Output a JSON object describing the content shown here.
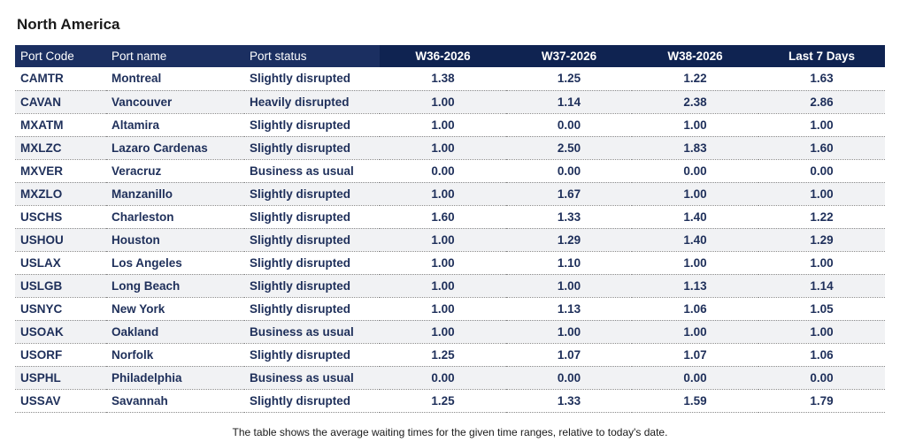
{
  "region_title": "North America",
  "columns": [
    "Port Code",
    "Port name",
    "Port status",
    "W36-2026",
    "W37-2026",
    "W38-2026",
    "Last 7 Days"
  ],
  "rows": [
    {
      "code": "CAMTR",
      "name": "Montreal",
      "status": "Slightly disrupted",
      "w36": "1.38",
      "w37": "1.25",
      "w38": "1.22",
      "last7": "1.63"
    },
    {
      "code": "CAVAN",
      "name": "Vancouver",
      "status": "Heavily disrupted",
      "w36": "1.00",
      "w37": "1.14",
      "w38": "2.38",
      "last7": "2.86"
    },
    {
      "code": "MXATM",
      "name": "Altamira",
      "status": "Slightly disrupted",
      "w36": "1.00",
      "w37": "0.00",
      "w38": "1.00",
      "last7": "1.00"
    },
    {
      "code": "MXLZC",
      "name": "Lazaro Cardenas",
      "status": "Slightly disrupted",
      "w36": "1.00",
      "w37": "2.50",
      "w38": "1.83",
      "last7": "1.60"
    },
    {
      "code": "MXVER",
      "name": "Veracruz",
      "status": "Business as usual",
      "w36": "0.00",
      "w37": "0.00",
      "w38": "0.00",
      "last7": "0.00"
    },
    {
      "code": "MXZLO",
      "name": "Manzanillo",
      "status": "Slightly disrupted",
      "w36": "1.00",
      "w37": "1.67",
      "w38": "1.00",
      "last7": "1.00"
    },
    {
      "code": "USCHS",
      "name": "Charleston",
      "status": "Slightly disrupted",
      "w36": "1.60",
      "w37": "1.33",
      "w38": "1.40",
      "last7": "1.22"
    },
    {
      "code": "USHOU",
      "name": "Houston",
      "status": "Slightly disrupted",
      "w36": "1.00",
      "w37": "1.29",
      "w38": "1.40",
      "last7": "1.29"
    },
    {
      "code": "USLAX",
      "name": "Los Angeles",
      "status": "Slightly disrupted",
      "w36": "1.00",
      "w37": "1.10",
      "w38": "1.00",
      "last7": "1.00"
    },
    {
      "code": "USLGB",
      "name": "Long Beach",
      "status": "Slightly disrupted",
      "w36": "1.00",
      "w37": "1.00",
      "w38": "1.13",
      "last7": "1.14"
    },
    {
      "code": "USNYC",
      "name": "New York",
      "status": "Slightly disrupted",
      "w36": "1.00",
      "w37": "1.13",
      "w38": "1.06",
      "last7": "1.05"
    },
    {
      "code": "USOAK",
      "name": "Oakland",
      "status": "Business as usual",
      "w36": "1.00",
      "w37": "1.00",
      "w38": "1.00",
      "last7": "1.00"
    },
    {
      "code": "USORF",
      "name": "Norfolk",
      "status": "Slightly disrupted",
      "w36": "1.25",
      "w37": "1.07",
      "w38": "1.07",
      "last7": "1.06"
    },
    {
      "code": "USPHL",
      "name": "Philadelphia",
      "status": "Business as usual",
      "w36": "0.00",
      "w37": "0.00",
      "w38": "0.00",
      "last7": "0.00"
    },
    {
      "code": "USSAV",
      "name": "Savannah",
      "status": "Slightly disrupted",
      "w36": "1.25",
      "w37": "1.33",
      "w38": "1.59",
      "last7": "1.79"
    }
  ],
  "footnote": "The table shows the average waiting times for the given time ranges, relative to today's date."
}
